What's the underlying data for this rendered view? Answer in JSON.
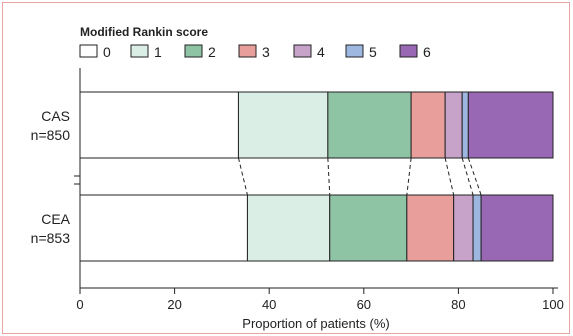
{
  "chart_data": {
    "type": "bar",
    "orientation": "horizontal",
    "stacked": true,
    "legend_title": "Modified Rankin score",
    "legend_placement": "top-left",
    "legend_columns": 7,
    "categories": [
      "0",
      "1",
      "2",
      "3",
      "4",
      "5",
      "6"
    ],
    "colors": [
      "#ffffff",
      "#dbeee6",
      "#8ec3a4",
      "#e89e9b",
      "#c7a3c9",
      "#9db7e1",
      "#9868b4"
    ],
    "groups": [
      {
        "label": "CAS",
        "sublabel": "n=850",
        "boundaries": [
          33.5,
          52.4,
          70.0,
          77.2,
          80.8,
          82.1,
          100
        ]
      },
      {
        "label": "CEA",
        "sublabel": "n=853",
        "boundaries": [
          35.4,
          52.8,
          69.1,
          79.0,
          83.1,
          84.8,
          100
        ]
      }
    ],
    "xlabel": "Proportion of patients (%)",
    "xlim": [
      0,
      100
    ],
    "xticks": [
      "0",
      "20",
      "40",
      "60",
      "80",
      "100"
    ],
    "xtick_values": [
      0,
      20,
      40,
      60,
      80,
      100
    ],
    "connector_lines": "dashed",
    "grid": false
  }
}
